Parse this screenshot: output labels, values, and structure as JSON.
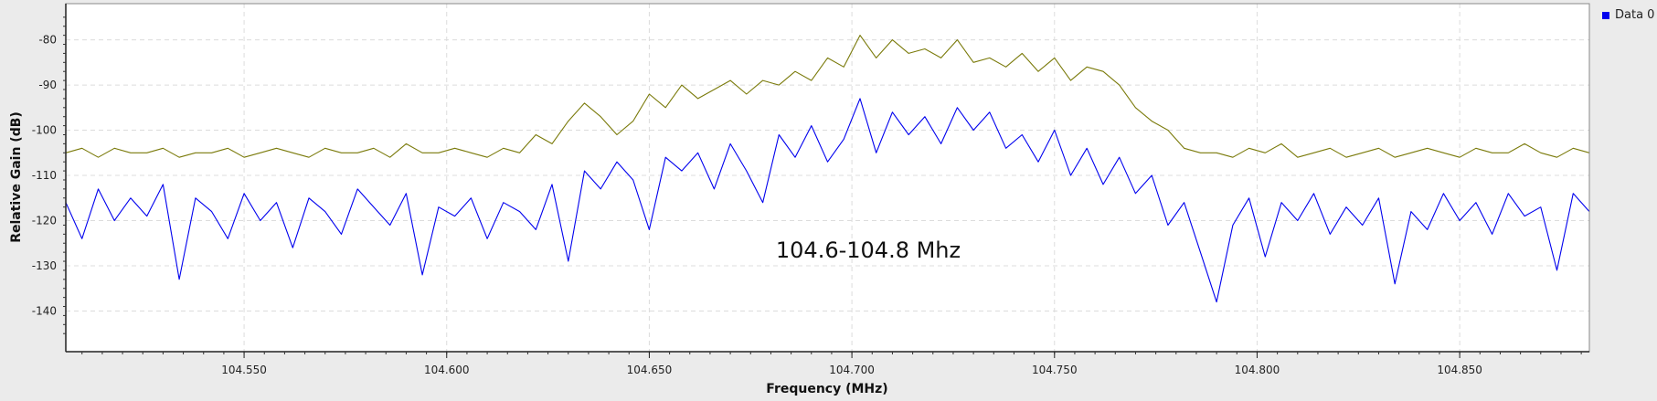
{
  "chart_data": {
    "type": "line",
    "title": "",
    "annotation": "104.6-104.8 Mhz",
    "xlabel": "Frequency (MHz)",
    "ylabel": "Relative Gain (dB)",
    "xlim": [
      104.506,
      104.882
    ],
    "ylim": [
      -149,
      -72
    ],
    "x_ticks": [
      104.55,
      104.6,
      104.65,
      104.7,
      104.75,
      104.8,
      104.85
    ],
    "x_tick_labels": [
      "104.550",
      "104.600",
      "104.650",
      "104.700",
      "104.750",
      "104.800",
      "104.850"
    ],
    "y_ticks": [
      -80,
      -90,
      -100,
      -110,
      -120,
      -130,
      -140
    ],
    "y_tick_labels": [
      "-80",
      "-90",
      "-100",
      "-110",
      "-120",
      "-130",
      "-140"
    ],
    "grid": true,
    "legend": {
      "placement": "top-right",
      "entries": [
        "Data 0"
      ]
    },
    "series": [
      {
        "name": "Data 0",
        "color": "#0000ee",
        "x": [
          104.506,
          104.51,
          104.514,
          104.518,
          104.522,
          104.526,
          104.53,
          104.534,
          104.538,
          104.542,
          104.546,
          104.55,
          104.554,
          104.558,
          104.562,
          104.566,
          104.57,
          104.574,
          104.578,
          104.582,
          104.586,
          104.59,
          104.594,
          104.598,
          104.602,
          104.606,
          104.61,
          104.614,
          104.618,
          104.622,
          104.626,
          104.63,
          104.634,
          104.638,
          104.642,
          104.646,
          104.65,
          104.654,
          104.658,
          104.662,
          104.666,
          104.67,
          104.674,
          104.678,
          104.682,
          104.686,
          104.69,
          104.694,
          104.698,
          104.702,
          104.706,
          104.71,
          104.714,
          104.718,
          104.722,
          104.726,
          104.73,
          104.734,
          104.738,
          104.742,
          104.746,
          104.75,
          104.754,
          104.758,
          104.762,
          104.766,
          104.77,
          104.774,
          104.778,
          104.782,
          104.786,
          104.79,
          104.794,
          104.798,
          104.802,
          104.806,
          104.81,
          104.814,
          104.818,
          104.822,
          104.826,
          104.83,
          104.834,
          104.838,
          104.842,
          104.846,
          104.85,
          104.854,
          104.858,
          104.862,
          104.866,
          104.87,
          104.874,
          104.878,
          104.882
        ],
        "values": [
          -116,
          -124,
          -113,
          -120,
          -115,
          -119,
          -112,
          -133,
          -115,
          -118,
          -124,
          -114,
          -120,
          -116,
          -126,
          -115,
          -118,
          -123,
          -113,
          -117,
          -121,
          -114,
          -132,
          -117,
          -119,
          -115,
          -124,
          -116,
          -118,
          -122,
          -112,
          -129,
          -109,
          -113,
          -107,
          -111,
          -122,
          -106,
          -109,
          -105,
          -113,
          -103,
          -109,
          -116,
          -101,
          -106,
          -99,
          -107,
          -102,
          -93,
          -105,
          -96,
          -101,
          -97,
          -103,
          -95,
          -100,
          -96,
          -104,
          -101,
          -107,
          -100,
          -110,
          -104,
          -112,
          -106,
          -114,
          -110,
          -121,
          -116,
          -127,
          -138,
          -121,
          -115,
          -128,
          -116,
          -120,
          -114,
          -123,
          -117,
          -121,
          -115,
          -134,
          -118,
          -122,
          -114,
          -120,
          -116,
          -123,
          -114,
          -119,
          -117,
          -131,
          -114,
          -118
        ]
      },
      {
        "name": "",
        "color": "#7a7a0a",
        "x": [
          104.506,
          104.51,
          104.514,
          104.518,
          104.522,
          104.526,
          104.53,
          104.534,
          104.538,
          104.542,
          104.546,
          104.55,
          104.554,
          104.558,
          104.562,
          104.566,
          104.57,
          104.574,
          104.578,
          104.582,
          104.586,
          104.59,
          104.594,
          104.598,
          104.602,
          104.606,
          104.61,
          104.614,
          104.618,
          104.622,
          104.626,
          104.63,
          104.634,
          104.638,
          104.642,
          104.646,
          104.65,
          104.654,
          104.658,
          104.662,
          104.666,
          104.67,
          104.674,
          104.678,
          104.682,
          104.686,
          104.69,
          104.694,
          104.698,
          104.702,
          104.706,
          104.71,
          104.714,
          104.718,
          104.722,
          104.726,
          104.73,
          104.734,
          104.738,
          104.742,
          104.746,
          104.75,
          104.754,
          104.758,
          104.762,
          104.766,
          104.77,
          104.774,
          104.778,
          104.782,
          104.786,
          104.79,
          104.794,
          104.798,
          104.802,
          104.806,
          104.81,
          104.814,
          104.818,
          104.822,
          104.826,
          104.83,
          104.834,
          104.838,
          104.842,
          104.846,
          104.85,
          104.854,
          104.858,
          104.862,
          104.866,
          104.87,
          104.874,
          104.878,
          104.882
        ],
        "values": [
          -105,
          -104,
          -106,
          -104,
          -105,
          -105,
          -104,
          -106,
          -105,
          -105,
          -104,
          -106,
          -105,
          -104,
          -105,
          -106,
          -104,
          -105,
          -105,
          -104,
          -106,
          -103,
          -105,
          -105,
          -104,
          -105,
          -106,
          -104,
          -105,
          -101,
          -103,
          -98,
          -94,
          -97,
          -101,
          -98,
          -92,
          -95,
          -90,
          -93,
          -91,
          -89,
          -92,
          -89,
          -90,
          -87,
          -89,
          -84,
          -86,
          -79,
          -84,
          -80,
          -83,
          -82,
          -84,
          -80,
          -85,
          -84,
          -86,
          -83,
          -87,
          -84,
          -89,
          -86,
          -87,
          -90,
          -95,
          -98,
          -100,
          -104,
          -105,
          -105,
          -106,
          -104,
          -105,
          -103,
          -106,
          -105,
          -104,
          -106,
          -105,
          -104,
          -106,
          -105,
          -104,
          -105,
          -106,
          -104,
          -105,
          -105,
          -103,
          -105,
          -106,
          -104,
          -105
        ]
      }
    ]
  }
}
